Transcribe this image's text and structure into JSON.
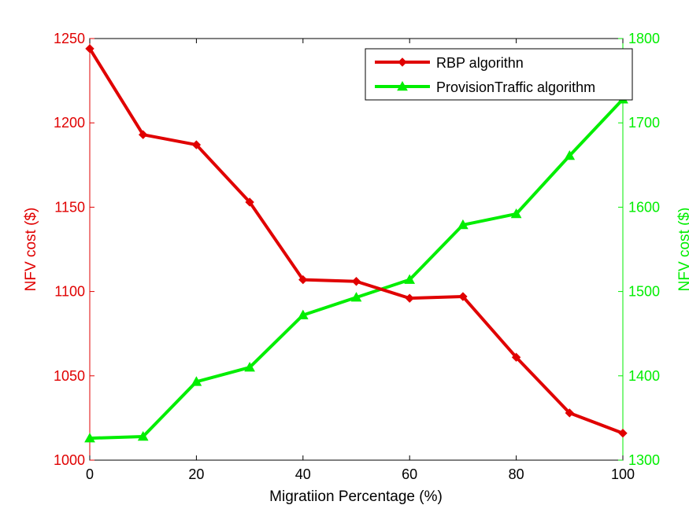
{
  "chart_data": {
    "type": "line",
    "xlabel": "Migratiion Percentage (%)",
    "ylabel_left": "NFV cost ($)",
    "ylabel_right": "NFV cost ($)",
    "x": [
      0,
      10,
      20,
      30,
      40,
      50,
      60,
      70,
      80,
      90,
      100
    ],
    "xlim": [
      0,
      100
    ],
    "xticks": [
      "0",
      "20",
      "40",
      "60",
      "80",
      "100"
    ],
    "ylim_left": [
      1000,
      1250
    ],
    "yticks_left": [
      "1000",
      "1050",
      "1100",
      "1150",
      "1200",
      "1250"
    ],
    "ylim_right": [
      1300,
      1800
    ],
    "yticks_right": [
      "1300",
      "1400",
      "1500",
      "1600",
      "1700",
      "1800"
    ],
    "grid": false,
    "legend_position": "top-right",
    "colors": {
      "left_axis": "#e00000",
      "right_axis": "#00ee00",
      "frame": "#000000"
    },
    "series": [
      {
        "name": "RBP algorithn",
        "axis": "left",
        "color": "#e00000",
        "marker": "diamond",
        "values": [
          1244,
          1193,
          1187,
          1153,
          1107,
          1106,
          1096,
          1097,
          1061,
          1028,
          1016
        ]
      },
      {
        "name": "ProvisionTraffic algorithm",
        "axis": "right",
        "color": "#00ee00",
        "marker": "triangle",
        "values": [
          1326,
          1328,
          1393,
          1410,
          1472,
          1493,
          1514,
          1579,
          1592,
          1661,
          1728
        ]
      }
    ]
  }
}
